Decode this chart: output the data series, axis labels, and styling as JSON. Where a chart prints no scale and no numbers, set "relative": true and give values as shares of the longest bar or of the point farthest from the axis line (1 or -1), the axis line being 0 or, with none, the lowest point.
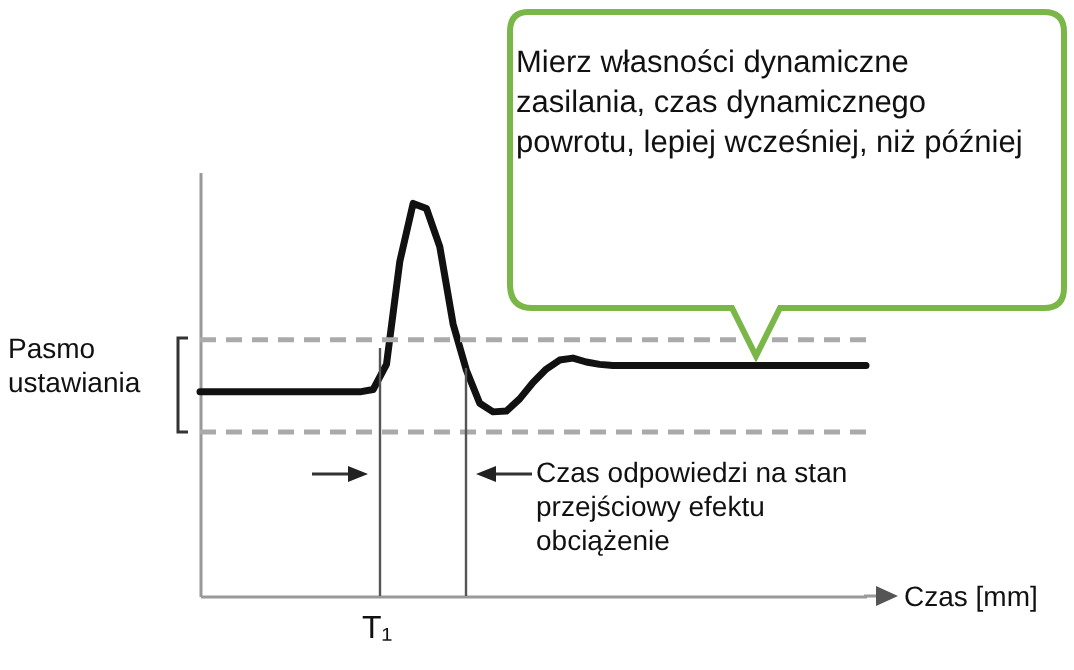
{
  "chart_data": {
    "type": "line",
    "relative": true,
    "xlabel": "Czas [mm]",
    "categories": [
      null,
      null,
      null,
      null,
      null,
      null,
      null,
      null,
      null,
      null,
      null,
      null,
      null,
      null,
      null,
      null,
      null,
      null,
      null,
      null,
      null,
      null,
      null,
      null,
      null,
      null,
      null,
      null,
      null,
      null,
      null,
      null,
      null,
      null,
      null,
      null,
      null,
      null,
      null,
      null,
      null,
      null,
      null,
      null,
      null,
      null,
      null,
      null,
      null,
      null,
      null
    ],
    "series": [
      {
        "color": "#111111",
        "values": [
          0.52,
          0.52,
          0.52,
          0.52,
          0.52,
          0.52,
          0.52,
          0.52,
          0.52,
          0.52,
          0.52,
          0.52,
          0.52,
          0.526,
          0.59,
          0.852,
          1,
          0.987,
          0.89,
          0.693,
          0.575,
          0.491,
          0.469,
          0.471,
          0.502,
          0.544,
          0.578,
          0.601,
          0.606,
          0.596,
          0.59,
          0.587,
          0.587,
          0.587,
          0.587,
          0.587,
          0.587,
          0.587,
          0.587,
          0.587,
          0.587,
          0.587,
          0.587,
          0.587,
          0.587,
          0.587,
          0.587,
          0.587,
          0.587,
          0.587,
          0.587
        ]
      }
    ],
    "ref_lines": [
      {
        "axis": "y",
        "value": 0.653,
        "label": null,
        "color": "#aaaaaa",
        "line_style": "dashed"
      },
      {
        "axis": "y",
        "value": 0.418,
        "label": null,
        "color": "#aaaaaa",
        "line_style": "dashed"
      }
    ],
    "annotations": [
      "Mierz własności dynamiczne zasilania, czas dynamicznego powrotu, lepiej wcześniej, niż później",
      "Czas odpowiedzi na stan przejściowy efektu obciążenie",
      "T₁",
      "Pasmo ustawiania"
    ],
    "grid": false,
    "marker": "none",
    "line_style": "solid"
  }
}
